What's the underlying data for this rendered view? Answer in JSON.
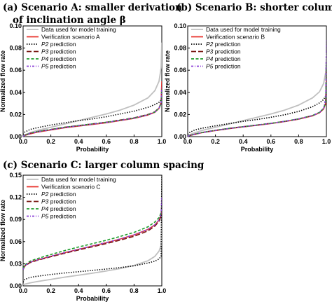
{
  "chart_data": [
    {
      "type": "line",
      "panel": "a",
      "title_line1": "(a) Scenario A: smaller derivation",
      "title_line2": "of inclination angle β",
      "xlabel": "Probability",
      "ylabel": "Normalized flow rate",
      "xlim": [
        0.0,
        1.0
      ],
      "ylim": [
        0.0,
        0.1
      ],
      "xticks": [
        "0.0",
        "0.2",
        "0.4",
        "0.6",
        "0.8",
        "1.0"
      ],
      "yticks": [
        "0.00",
        "0.02",
        "0.04",
        "0.06",
        "0.08",
        "0.10"
      ],
      "grid": false,
      "legend_position": "top-left",
      "x": [
        0.0,
        0.01,
        0.05,
        0.1,
        0.2,
        0.3,
        0.4,
        0.5,
        0.6,
        0.7,
        0.8,
        0.9,
        0.95,
        0.98,
        0.995,
        1.0
      ],
      "series": [
        {
          "name": "Data used for model training",
          "color": "#c0c0c0",
          "dash": "solid",
          "values": [
            0.0008,
            0.0015,
            0.0035,
            0.0055,
            0.0085,
            0.0115,
            0.0145,
            0.0175,
            0.0205,
            0.024,
            0.0285,
            0.035,
            0.0415,
            0.05,
            0.062,
            0.085
          ]
        },
        {
          "name": "Verification scenario A",
          "color": "#e8302a",
          "dash": "solid",
          "values": [
            0.0003,
            0.001,
            0.0025,
            0.004,
            0.006,
            0.008,
            0.0095,
            0.011,
            0.0125,
            0.0145,
            0.0165,
            0.0195,
            0.022,
            0.0255,
            0.031,
            0.05
          ]
        },
        {
          "name": "P2 prediction",
          "color": "#000000",
          "dash": "dot",
          "values": [
            0.002,
            0.004,
            0.0065,
            0.008,
            0.0105,
            0.0125,
            0.0145,
            0.016,
            0.018,
            0.0205,
            0.023,
            0.0265,
            0.029,
            0.031,
            0.033,
            0.035
          ]
        },
        {
          "name": "P3 prediction",
          "color": "#7a1a14",
          "dash": "longdash",
          "values": [
            0.0003,
            0.0012,
            0.003,
            0.0045,
            0.0065,
            0.0085,
            0.01,
            0.0115,
            0.013,
            0.015,
            0.017,
            0.02,
            0.0225,
            0.026,
            0.03,
            0.042
          ]
        },
        {
          "name": "P4 prediction",
          "color": "#1f9c2c",
          "dash": "dash",
          "values": [
            0.0003,
            0.0012,
            0.003,
            0.0045,
            0.0065,
            0.0085,
            0.01,
            0.0115,
            0.013,
            0.0148,
            0.0168,
            0.0198,
            0.0222,
            0.0258,
            0.03,
            0.043
          ]
        },
        {
          "name": "P5 prediction",
          "color": "#8a3fd6",
          "dash": "dashdot",
          "values": [
            0.0003,
            0.0011,
            0.0028,
            0.0043,
            0.0063,
            0.0083,
            0.0098,
            0.0113,
            0.0128,
            0.0147,
            0.0167,
            0.0197,
            0.0221,
            0.0257,
            0.0305,
            0.045
          ]
        }
      ]
    },
    {
      "type": "line",
      "panel": "b",
      "title_line1": "(b) Scenario B: shorter columns",
      "xlabel": "Probability",
      "ylabel": "Normalized flow rate",
      "xlim": [
        0.0,
        1.0
      ],
      "ylim": [
        0.0,
        0.1
      ],
      "xticks": [
        "0.0",
        "0.2",
        "0.4",
        "0.6",
        "0.8",
        "1.0"
      ],
      "yticks": [
        "0.00",
        "0.02",
        "0.04",
        "0.06",
        "0.08",
        "0.10"
      ],
      "grid": false,
      "legend_position": "top-left",
      "x": [
        0.0,
        0.01,
        0.05,
        0.1,
        0.2,
        0.3,
        0.4,
        0.5,
        0.6,
        0.7,
        0.8,
        0.9,
        0.95,
        0.98,
        0.995,
        1.0
      ],
      "series": [
        {
          "name": "Data used for model training",
          "color": "#c0c0c0",
          "dash": "solid",
          "values": [
            0.0008,
            0.0015,
            0.0035,
            0.0055,
            0.0085,
            0.0115,
            0.0145,
            0.0175,
            0.0205,
            0.024,
            0.0285,
            0.035,
            0.0405,
            0.048,
            0.058,
            0.075
          ]
        },
        {
          "name": "Verification scenario B",
          "color": "#e8302a",
          "dash": "solid",
          "values": [
            0.0002,
            0.0008,
            0.002,
            0.0035,
            0.0055,
            0.0072,
            0.0088,
            0.0102,
            0.0118,
            0.0136,
            0.0158,
            0.0188,
            0.0215,
            0.025,
            0.03,
            0.055
          ]
        },
        {
          "name": "P2 prediction",
          "color": "#000000",
          "dash": "dot",
          "values": [
            0.002,
            0.0035,
            0.006,
            0.0075,
            0.0098,
            0.0118,
            0.0138,
            0.0155,
            0.0175,
            0.0198,
            0.0228,
            0.027,
            0.0305,
            0.0335,
            0.037,
            0.042
          ]
        },
        {
          "name": "P3 prediction",
          "color": "#7a1a14",
          "dash": "longdash",
          "values": [
            0.0002,
            0.0009,
            0.0022,
            0.0037,
            0.0057,
            0.0075,
            0.009,
            0.0105,
            0.012,
            0.0138,
            0.016,
            0.019,
            0.0218,
            0.0255,
            0.031,
            0.06
          ]
        },
        {
          "name": "P4 prediction",
          "color": "#1f9c2c",
          "dash": "dash",
          "values": [
            0.0002,
            0.0009,
            0.0022,
            0.0037,
            0.0057,
            0.0075,
            0.009,
            0.0105,
            0.012,
            0.0139,
            0.0161,
            0.0191,
            0.0219,
            0.0256,
            0.0315,
            0.065
          ]
        },
        {
          "name": "P5 prediction",
          "color": "#8a3fd6",
          "dash": "dashdot",
          "values": [
            0.0002,
            0.0009,
            0.0021,
            0.0036,
            0.0056,
            0.0074,
            0.0089,
            0.0104,
            0.0119,
            0.0138,
            0.016,
            0.019,
            0.0218,
            0.0255,
            0.034,
            0.087
          ]
        }
      ]
    },
    {
      "type": "line",
      "panel": "c",
      "title_line1": "(c) Scenario C: larger column spacing",
      "xlabel": "Probability",
      "ylabel": "Normalized flow rate",
      "xlim": [
        0.0,
        1.0
      ],
      "ylim": [
        0.0,
        0.15
      ],
      "xticks": [
        "0.0",
        "0.2",
        "0.4",
        "0.6",
        "0.8",
        "1.0"
      ],
      "yticks": [
        "0.00",
        "0.03",
        "0.06",
        "0.09",
        "0.12",
        "0.15"
      ],
      "grid": false,
      "legend_position": "top-left",
      "x": [
        0.0,
        0.01,
        0.05,
        0.1,
        0.2,
        0.3,
        0.4,
        0.5,
        0.6,
        0.7,
        0.8,
        0.9,
        0.95,
        0.98,
        0.995,
        1.0
      ],
      "series": [
        {
          "name": "Data used for model training",
          "color": "#c0c0c0",
          "dash": "solid",
          "values": [
            0.0012,
            0.0022,
            0.004,
            0.0058,
            0.0088,
            0.0118,
            0.0145,
            0.0172,
            0.0202,
            0.0235,
            0.0278,
            0.034,
            0.04,
            0.047,
            0.055,
            0.085
          ]
        },
        {
          "name": "Verification scenario C",
          "color": "#e8302a",
          "dash": "solid",
          "values": [
            0.022,
            0.027,
            0.032,
            0.035,
            0.04,
            0.045,
            0.0495,
            0.054,
            0.0585,
            0.0635,
            0.069,
            0.0765,
            0.0825,
            0.089,
            0.096,
            0.11
          ]
        },
        {
          "name": "P2 prediction",
          "color": "#000000",
          "dash": "dot",
          "values": [
            0.005,
            0.0085,
            0.0115,
            0.013,
            0.0155,
            0.0175,
            0.0192,
            0.021,
            0.0228,
            0.0248,
            0.0272,
            0.031,
            0.0335,
            0.0365,
            0.04,
            0.148
          ]
        },
        {
          "name": "P3 prediction",
          "color": "#7a1a14",
          "dash": "longdash",
          "values": [
            0.022,
            0.0265,
            0.0315,
            0.0345,
            0.0395,
            0.0442,
            0.0487,
            0.053,
            0.0573,
            0.062,
            0.0672,
            0.0745,
            0.081,
            0.0875,
            0.095,
            0.105
          ]
        },
        {
          "name": "P4 prediction",
          "color": "#1f9c2c",
          "dash": "dash",
          "values": [
            0.023,
            0.028,
            0.0335,
            0.0368,
            0.0425,
            0.0478,
            0.0527,
            0.0572,
            0.0618,
            0.067,
            0.0725,
            0.08,
            0.0865,
            0.0925,
            0.099,
            0.108
          ]
        },
        {
          "name": "P5 prediction",
          "color": "#8a3fd6",
          "dash": "dashdot",
          "values": [
            0.022,
            0.027,
            0.032,
            0.035,
            0.0402,
            0.0452,
            0.0497,
            0.0542,
            0.0587,
            0.0637,
            0.0692,
            0.0767,
            0.0828,
            0.0895,
            0.097,
            0.12
          ]
        }
      ]
    }
  ]
}
